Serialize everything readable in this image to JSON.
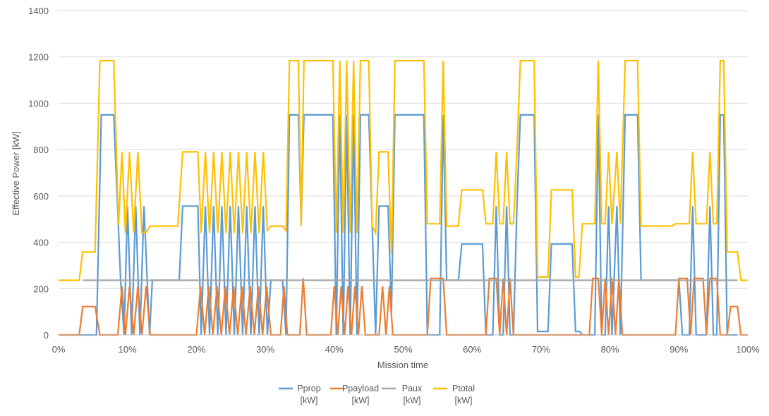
{
  "chart_data": {
    "type": "line",
    "title": "",
    "xlabel": "Mission time",
    "ylabel": "Effective Power [kW]",
    "xlim": [
      0,
      100
    ],
    "ylim": [
      0,
      1400
    ],
    "x_ticks": [
      0,
      10,
      20,
      30,
      40,
      50,
      60,
      70,
      80,
      90,
      100
    ],
    "x_tick_labels": [
      "0%",
      "10%",
      "20%",
      "30%",
      "40%",
      "50%",
      "60%",
      "70%",
      "80%",
      "90%",
      "100%"
    ],
    "y_ticks": [
      0,
      200,
      400,
      600,
      800,
      1000,
      1200,
      1400
    ],
    "y_tick_labels": [
      "0",
      "200",
      "400",
      "600",
      "800",
      "1000",
      "1200",
      "1400"
    ],
    "grid": "horizontal",
    "legend_position": "bottom",
    "series": [
      {
        "name": "Pprop [kW]",
        "legend_lines": [
          "Pprop",
          "[kW]"
        ],
        "color": "#5B9BD5",
        "points": [
          [
            0,
            0
          ],
          [
            3.5,
            0
          ],
          [
            5.5,
            0
          ],
          [
            6.2,
            950
          ],
          [
            8,
            950
          ],
          [
            9,
            240
          ],
          [
            9.5,
            0
          ],
          [
            10,
            556
          ],
          [
            10.6,
            0
          ],
          [
            11.2,
            556
          ],
          [
            11.8,
            0
          ],
          [
            12.4,
            556
          ],
          [
            13.2,
            0
          ],
          [
            13.6,
            236
          ],
          [
            17.5,
            236
          ],
          [
            18,
            556
          ],
          [
            20.2,
            556
          ],
          [
            20.7,
            0
          ],
          [
            21.3,
            556
          ],
          [
            21.9,
            0
          ],
          [
            22.5,
            556
          ],
          [
            23.1,
            0
          ],
          [
            23.7,
            556
          ],
          [
            24.3,
            0
          ],
          [
            24.9,
            556
          ],
          [
            25.5,
            0
          ],
          [
            26.1,
            556
          ],
          [
            26.7,
            0
          ],
          [
            27.3,
            556
          ],
          [
            27.9,
            0
          ],
          [
            28.5,
            556
          ],
          [
            29.1,
            0
          ],
          [
            29.7,
            556
          ],
          [
            30.3,
            0
          ],
          [
            30.8,
            236
          ],
          [
            32.5,
            236
          ],
          [
            33,
            0
          ],
          [
            33.5,
            950
          ],
          [
            34.8,
            950
          ],
          [
            35.2,
            480
          ],
          [
            35.6,
            950
          ],
          [
            39.8,
            950
          ],
          [
            40.3,
            0
          ],
          [
            40.8,
            950
          ],
          [
            41.3,
            0
          ],
          [
            41.8,
            950
          ],
          [
            42.3,
            0
          ],
          [
            42.8,
            950
          ],
          [
            43.3,
            0
          ],
          [
            43.8,
            950
          ],
          [
            45,
            950
          ],
          [
            45.5,
            480
          ],
          [
            46,
            0
          ],
          [
            46.5,
            556
          ],
          [
            47.8,
            556
          ],
          [
            48.3,
            100
          ],
          [
            48.8,
            950
          ],
          [
            53,
            950
          ],
          [
            53.5,
            0
          ],
          [
            55.3,
            0
          ],
          [
            55.8,
            950
          ],
          [
            56.3,
            236
          ],
          [
            58,
            236
          ],
          [
            58.5,
            392
          ],
          [
            61.5,
            392
          ],
          [
            62,
            0
          ],
          [
            62.5,
            0
          ],
          [
            63,
            0
          ],
          [
            63.5,
            556
          ],
          [
            64,
            0
          ],
          [
            64.5,
            0
          ],
          [
            65,
            556
          ],
          [
            65.5,
            0
          ],
          [
            66,
            0
          ],
          [
            66.5,
            556
          ],
          [
            67,
            950
          ],
          [
            69,
            950
          ],
          [
            69.5,
            15
          ],
          [
            71,
            15
          ],
          [
            71.5,
            392
          ],
          [
            74.5,
            392
          ],
          [
            75,
            15
          ],
          [
            75.6,
            15
          ],
          [
            76,
            0
          ],
          [
            77.8,
            0
          ],
          [
            78.3,
            950
          ],
          [
            78.8,
            0
          ],
          [
            79.3,
            0
          ],
          [
            79.8,
            556
          ],
          [
            80.3,
            0
          ],
          [
            81,
            556
          ],
          [
            81.5,
            0
          ],
          [
            82.2,
            950
          ],
          [
            84,
            950
          ],
          [
            84.5,
            236
          ],
          [
            90,
            236
          ],
          [
            90.5,
            0
          ],
          [
            91.5,
            0
          ],
          [
            92,
            556
          ],
          [
            92.5,
            0
          ],
          [
            94,
            0
          ],
          [
            94.5,
            556
          ],
          [
            95,
            0
          ],
          [
            95.5,
            0
          ],
          [
            96,
            950
          ],
          [
            96.5,
            950
          ],
          [
            97,
            0
          ],
          [
            98.5,
            0
          ]
        ]
      },
      {
        "name": "Ppayload [kW]",
        "legend_lines": [
          "Ppayload",
          "[kW]"
        ],
        "color": "#ED7D31",
        "points": [
          [
            0,
            0
          ],
          [
            3,
            0
          ],
          [
            3.5,
            122
          ],
          [
            5.3,
            122
          ],
          [
            6,
            0
          ],
          [
            8.6,
            0
          ],
          [
            9.2,
            210
          ],
          [
            9.7,
            0
          ],
          [
            10.3,
            210
          ],
          [
            10.9,
            0
          ],
          [
            11.5,
            210
          ],
          [
            12.1,
            0
          ],
          [
            12.7,
            210
          ],
          [
            13.3,
            0
          ],
          [
            17.5,
            0
          ],
          [
            20,
            0
          ],
          [
            20.6,
            210
          ],
          [
            21.2,
            0
          ],
          [
            21.8,
            210
          ],
          [
            22.4,
            0
          ],
          [
            23,
            210
          ],
          [
            23.6,
            0
          ],
          [
            24.2,
            210
          ],
          [
            24.8,
            0
          ],
          [
            25.4,
            210
          ],
          [
            26,
            0
          ],
          [
            26.6,
            210
          ],
          [
            27.2,
            0
          ],
          [
            27.8,
            210
          ],
          [
            28.4,
            0
          ],
          [
            29,
            210
          ],
          [
            29.6,
            0
          ],
          [
            30.2,
            210
          ],
          [
            30.8,
            0
          ],
          [
            32.2,
            0
          ],
          [
            32.7,
            210
          ],
          [
            33.2,
            0
          ],
          [
            35,
            0
          ],
          [
            35.5,
            244
          ],
          [
            36,
            0
          ],
          [
            39.5,
            0
          ],
          [
            40,
            210
          ],
          [
            40.5,
            0
          ],
          [
            41,
            210
          ],
          [
            41.5,
            0
          ],
          [
            42,
            210
          ],
          [
            42.5,
            0
          ],
          [
            43,
            210
          ],
          [
            43.5,
            0
          ],
          [
            44,
            210
          ],
          [
            44.5,
            0
          ],
          [
            46.5,
            0
          ],
          [
            47,
            210
          ],
          [
            47.5,
            0
          ],
          [
            48,
            210
          ],
          [
            48.5,
            0
          ],
          [
            53.5,
            0
          ],
          [
            54,
            244
          ],
          [
            55.8,
            244
          ],
          [
            56.3,
            0
          ],
          [
            62,
            0
          ],
          [
            62.5,
            244
          ],
          [
            63.5,
            244
          ],
          [
            64,
            0
          ],
          [
            64.5,
            244
          ],
          [
            65,
            0
          ],
          [
            65.5,
            244
          ],
          [
            66,
            0
          ],
          [
            66.5,
            0
          ],
          [
            77,
            0
          ],
          [
            77.5,
            244
          ],
          [
            78.3,
            244
          ],
          [
            78.8,
            0
          ],
          [
            79.3,
            244
          ],
          [
            79.8,
            0
          ],
          [
            80.3,
            244
          ],
          [
            80.8,
            0
          ],
          [
            81.3,
            244
          ],
          [
            81.8,
            0
          ],
          [
            82.3,
            0
          ],
          [
            89.5,
            0
          ],
          [
            90,
            244
          ],
          [
            91.2,
            244
          ],
          [
            91.7,
            0
          ],
          [
            92.2,
            244
          ],
          [
            93.5,
            244
          ],
          [
            94,
            0
          ],
          [
            94.5,
            244
          ],
          [
            95.5,
            244
          ],
          [
            96,
            0
          ],
          [
            97,
            0
          ],
          [
            97.5,
            122
          ],
          [
            98.5,
            122
          ],
          [
            99,
            0
          ],
          [
            100,
            0
          ]
        ]
      },
      {
        "name": "Paux [kW]",
        "legend_lines": [
          "Paux",
          "[kW]"
        ],
        "color": "#A5A5A5",
        "points": [
          [
            3.5,
            236
          ],
          [
            98.5,
            236
          ]
        ]
      },
      {
        "name": "Ptotal [kW]",
        "legend_lines": [
          "Ptotal",
          "[kW]"
        ],
        "color": "#FFC000",
        "points": [
          [
            0,
            236
          ],
          [
            3,
            236
          ],
          [
            3.5,
            358
          ],
          [
            5.3,
            358
          ],
          [
            6,
            1184
          ],
          [
            8,
            1184
          ],
          [
            8.7,
            475
          ],
          [
            9.2,
            790
          ],
          [
            9.7,
            440
          ],
          [
            10.3,
            790
          ],
          [
            10.9,
            440
          ],
          [
            11.5,
            790
          ],
          [
            12.1,
            440
          ],
          [
            12.7,
            444
          ],
          [
            13.3,
            470
          ],
          [
            17.3,
            470
          ],
          [
            18,
            790
          ],
          [
            20.2,
            790
          ],
          [
            20.7,
            440
          ],
          [
            21.3,
            790
          ],
          [
            21.9,
            440
          ],
          [
            22.5,
            790
          ],
          [
            23.1,
            440
          ],
          [
            23.7,
            790
          ],
          [
            24.3,
            440
          ],
          [
            24.9,
            790
          ],
          [
            25.5,
            440
          ],
          [
            26.1,
            790
          ],
          [
            26.7,
            440
          ],
          [
            27.3,
            790
          ],
          [
            27.9,
            440
          ],
          [
            28.5,
            790
          ],
          [
            29.1,
            440
          ],
          [
            29.7,
            790
          ],
          [
            30.3,
            450
          ],
          [
            30.8,
            470
          ],
          [
            32.5,
            470
          ],
          [
            33,
            450
          ],
          [
            33.5,
            1184
          ],
          [
            34.8,
            1184
          ],
          [
            35.2,
            470
          ],
          [
            35.6,
            1184
          ],
          [
            39.8,
            1184
          ],
          [
            40.3,
            440
          ],
          [
            40.8,
            1184
          ],
          [
            41.3,
            440
          ],
          [
            41.8,
            1184
          ],
          [
            42.3,
            440
          ],
          [
            42.8,
            1184
          ],
          [
            43.3,
            440
          ],
          [
            43.8,
            1184
          ],
          [
            45,
            1184
          ],
          [
            45.5,
            470
          ],
          [
            46,
            440
          ],
          [
            46.5,
            790
          ],
          [
            47.8,
            790
          ],
          [
            48.3,
            350
          ],
          [
            48.8,
            1184
          ],
          [
            53,
            1184
          ],
          [
            53.5,
            480
          ],
          [
            55.3,
            480
          ],
          [
            55.8,
            1184
          ],
          [
            56.3,
            470
          ],
          [
            58,
            470
          ],
          [
            58.5,
            626
          ],
          [
            61.5,
            626
          ],
          [
            62,
            480
          ],
          [
            63,
            480
          ],
          [
            63.5,
            790
          ],
          [
            64,
            480
          ],
          [
            64.5,
            480
          ],
          [
            65,
            790
          ],
          [
            65.5,
            480
          ],
          [
            66,
            480
          ],
          [
            66.5,
            790
          ],
          [
            67,
            1184
          ],
          [
            69,
            1184
          ],
          [
            69.5,
            250
          ],
          [
            71,
            250
          ],
          [
            71.5,
            626
          ],
          [
            74.5,
            626
          ],
          [
            75,
            250
          ],
          [
            75.5,
            250
          ],
          [
            76,
            480
          ],
          [
            77.8,
            480
          ],
          [
            78.3,
            1184
          ],
          [
            78.8,
            480
          ],
          [
            79.3,
            480
          ],
          [
            79.8,
            790
          ],
          [
            80.3,
            480
          ],
          [
            81,
            790
          ],
          [
            81.5,
            480
          ],
          [
            82.2,
            1184
          ],
          [
            84,
            1184
          ],
          [
            84.5,
            470
          ],
          [
            89,
            470
          ],
          [
            89.5,
            480
          ],
          [
            91.5,
            480
          ],
          [
            92,
            790
          ],
          [
            92.5,
            480
          ],
          [
            94,
            480
          ],
          [
            94.5,
            790
          ],
          [
            95,
            480
          ],
          [
            95.5,
            480
          ],
          [
            96,
            1184
          ],
          [
            96.5,
            1184
          ],
          [
            97,
            358
          ],
          [
            98.5,
            358
          ],
          [
            99,
            236
          ],
          [
            100,
            236
          ]
        ]
      }
    ]
  }
}
